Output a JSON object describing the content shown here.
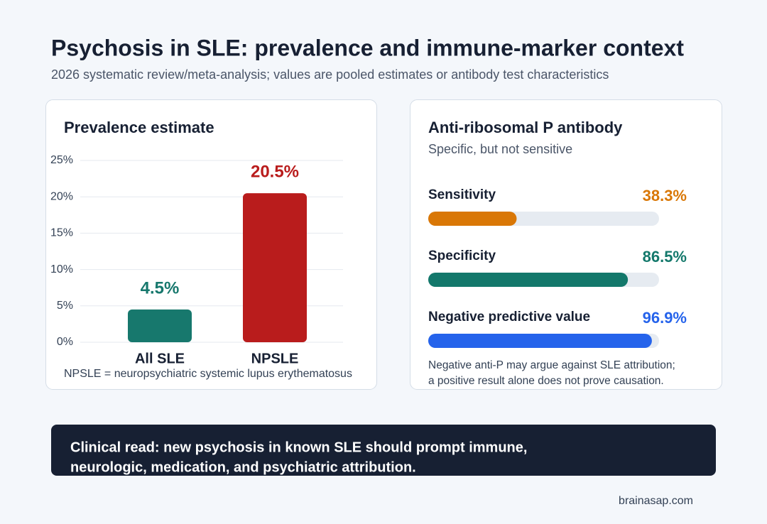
{
  "header": {
    "title": "Psychosis in SLE: prevalence and immune-marker context",
    "subtitle": "2026 systematic review/meta-analysis; values are pooled estimates or antibody test characteristics"
  },
  "chart_data": [
    {
      "type": "bar",
      "title": "Prevalence estimate",
      "categories": [
        "All SLE",
        "NPSLE"
      ],
      "values": [
        4.5,
        20.5
      ],
      "value_labels": [
        "4.5%",
        "20.5%"
      ],
      "colors": [
        "#17786d",
        "#b91c1c"
      ],
      "ylim": [
        0,
        25
      ],
      "yticks": [
        {
          "value": 0,
          "label": "0%"
        },
        {
          "value": 5,
          "label": "5%"
        },
        {
          "value": 10,
          "label": "10%"
        },
        {
          "value": 15,
          "label": "15%"
        },
        {
          "value": 20,
          "label": "20%"
        },
        {
          "value": 25,
          "label": "25%"
        }
      ],
      "grid": true,
      "note": "NPSLE = neuropsychiatric systemic lupus erythematosus"
    },
    {
      "type": "progress",
      "title": "Anti-ribosomal P antibody",
      "subtitle": "Specific, but not sensitive",
      "categories": [
        "Sensitivity",
        "Specificity",
        "Negative predictive value"
      ],
      "values": [
        38.3,
        86.5,
        96.9
      ],
      "value_labels": [
        "38.3%",
        "86.5%",
        "96.9%"
      ],
      "colors": [
        "#d97706",
        "#13786b",
        "#2563eb"
      ],
      "xlim": [
        0,
        100
      ],
      "note": [
        "Negative anti-P may argue against SLE attribution;",
        "a positive result alone does not prove causation."
      ]
    }
  ],
  "callout": [
    "Clinical read: new psychosis in known SLE should prompt immune,",
    "neurologic, medication, and psychiatric attribution."
  ],
  "source": "brainasap.com"
}
